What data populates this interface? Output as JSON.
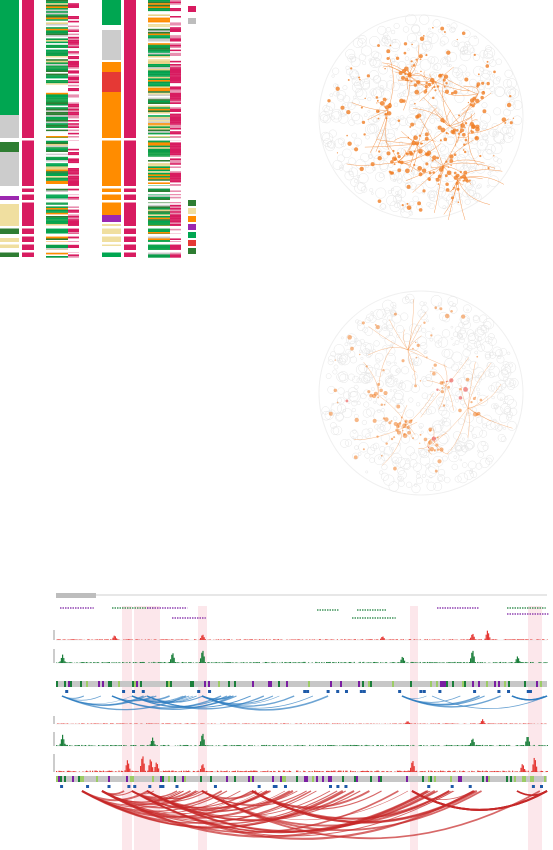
{
  "figure": {
    "heatmap": {
      "columns": [
        {
          "id": "c1",
          "kind": "category"
        },
        {
          "id": "c2",
          "kind": "tissue"
        },
        {
          "id": "c3",
          "kind": "state"
        },
        {
          "id": "c4",
          "kind": "dense"
        },
        {
          "id": "c5",
          "kind": "category"
        },
        {
          "id": "c6",
          "kind": "tissue"
        },
        {
          "id": "c7",
          "kind": "state"
        },
        {
          "id": "c8",
          "kind": "dense"
        }
      ],
      "legend_colors": [
        "#d81b60",
        "#bdbdbd",
        "#2e7d32",
        "#f0dfa0",
        "#ff8c00",
        "#9c27b0",
        "#00a651",
        "#e53935",
        "#2e7d32"
      ]
    },
    "circles": [
      {
        "id": "top",
        "accent": "#f07e26",
        "density": "high"
      },
      {
        "id": "bottom",
        "accent": "#f07e26",
        "density": "low"
      }
    ],
    "genome_browser": {
      "highlight_color": "#fbe3e8",
      "bar_colors": [
        "#e53935",
        "#1b7f3b",
        "#ff8c00",
        "#7b1fa2",
        "#1e88e5"
      ],
      "arc_sets": [
        {
          "id": "upper-arcs",
          "color": "#2f7ec1"
        },
        {
          "id": "lower-arcs",
          "color": "#c62828"
        }
      ]
    }
  }
}
